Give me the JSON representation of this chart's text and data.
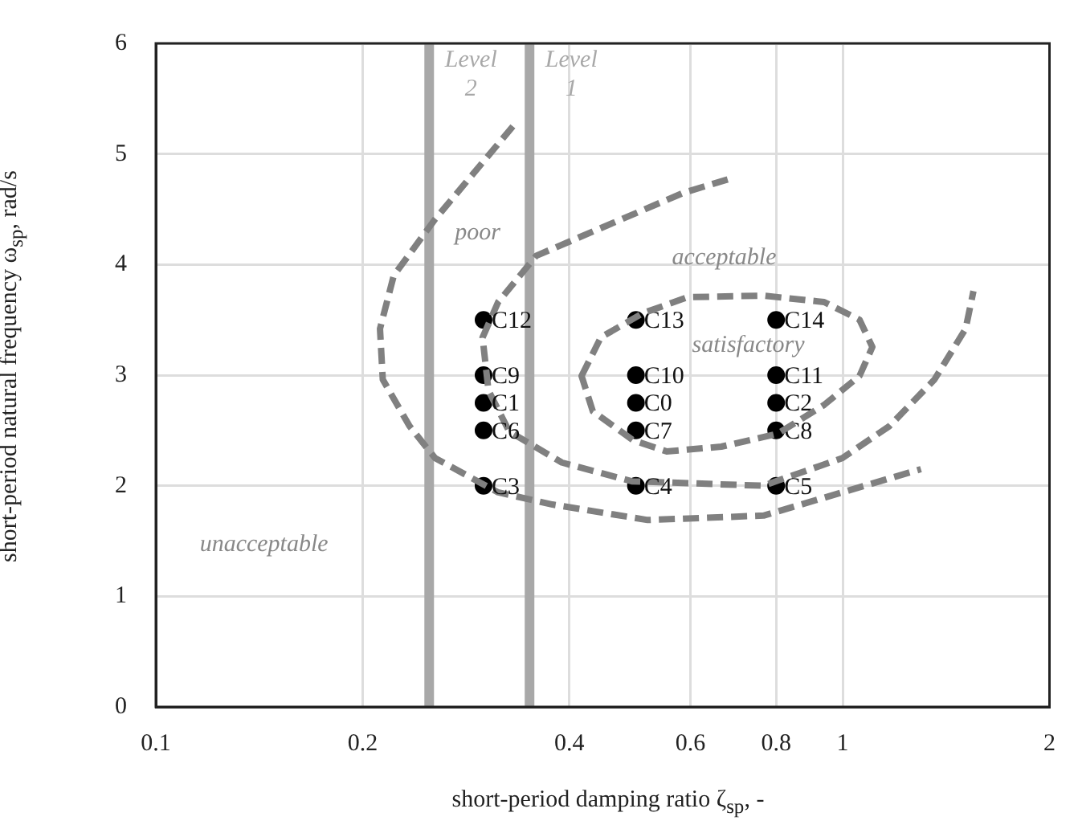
{
  "chart_data": {
    "type": "scatter",
    "xlabel": "short-period damping ratio ζ$_{sp}$, -",
    "ylabel": "short-period natural frequency ω$_{sp}$, rad/s",
    "log": "x",
    "xlim": [
      0.1,
      2
    ],
    "ylim": [
      0,
      6
    ],
    "xticks": [
      0.1,
      0.2,
      0.4,
      0.6,
      0.8,
      1,
      2
    ],
    "yticks": [
      0,
      1,
      2,
      3,
      4,
      5,
      6
    ],
    "grid": true,
    "legend": false,
    "marker": "circle",
    "ref_lines": [
      {
        "axis": "x",
        "value": 0.25,
        "label": "Level 2",
        "color": "#a8a8a8"
      },
      {
        "axis": "x",
        "value": 0.35,
        "label": "Level 1",
        "color": "#a8a8a8"
      }
    ],
    "annotations": [
      "poor",
      "acceptable",
      "satisfactory",
      "unacceptable"
    ],
    "series": [
      {
        "type": "line",
        "color": "#808080",
        "line_style": "dashed",
        "marker": "none",
        "x": [
          0.331,
          0.255,
          0.222,
          0.212,
          0.214,
          0.234,
          0.255,
          0.315,
          0.378,
          0.52,
          0.767,
          1.3
        ],
        "values": [
          5.25,
          4.41,
          3.9,
          3.42,
          2.96,
          2.54,
          2.25,
          1.94,
          1.83,
          1.69,
          1.73,
          2.15
        ]
      },
      {
        "type": "line",
        "color": "#808080",
        "line_style": "dashed",
        "marker": "none",
        "x": [
          0.68,
          0.587,
          0.358,
          0.315,
          0.299,
          0.305,
          0.327,
          0.39,
          0.493,
          0.766,
          0.999,
          1.17,
          1.36,
          1.51,
          1.55
        ],
        "values": [
          4.77,
          4.65,
          4.08,
          3.66,
          3.34,
          2.86,
          2.49,
          2.21,
          2.04,
          2.0,
          2.25,
          2.54,
          2.96,
          3.42,
          3.76
        ]
      },
      {
        "type": "scatter",
        "name": "C0",
        "color": "#000000",
        "x": [
          0.5
        ],
        "values": [
          2.75
        ]
      },
      {
        "type": "scatter",
        "name": "C1",
        "color": "#000000",
        "x": [
          0.3
        ],
        "values": [
          2.75
        ]
      },
      {
        "type": "scatter",
        "name": "C2",
        "color": "#000000",
        "x": [
          0.8
        ],
        "values": [
          2.75
        ]
      },
      {
        "type": "scatter",
        "name": "C3",
        "color": "#000000",
        "x": [
          0.3
        ],
        "values": [
          2
        ]
      },
      {
        "type": "scatter",
        "name": "C4",
        "color": "#000000",
        "x": [
          0.5
        ],
        "values": [
          2
        ]
      },
      {
        "type": "scatter",
        "name": "C5",
        "color": "#000000",
        "x": [
          0.8
        ],
        "values": [
          2
        ]
      },
      {
        "type": "scatter",
        "name": "C6",
        "color": "#000000",
        "x": [
          0.3
        ],
        "values": [
          2.5
        ]
      },
      {
        "type": "scatter",
        "name": "C7",
        "color": "#000000",
        "x": [
          0.5
        ],
        "values": [
          2.5
        ]
      },
      {
        "type": "scatter",
        "name": "C8",
        "color": "#000000",
        "x": [
          0.8
        ],
        "values": [
          2.5
        ]
      },
      {
        "type": "scatter",
        "name": "C9",
        "color": "#000000",
        "x": [
          0.3
        ],
        "values": [
          3
        ]
      },
      {
        "type": "scatter",
        "name": "C10",
        "color": "#000000",
        "x": [
          0.5
        ],
        "values": [
          3
        ]
      },
      {
        "type": "scatter",
        "name": "C11",
        "color": "#000000",
        "x": [
          0.8
        ],
        "values": [
          3
        ]
      },
      {
        "type": "scatter",
        "name": "C12",
        "color": "#000000",
        "x": [
          0.3
        ],
        "values": [
          3.5
        ]
      },
      {
        "type": "scatter",
        "name": "C13",
        "color": "#000000",
        "x": [
          0.5
        ],
        "values": [
          3.5
        ]
      },
      {
        "type": "scatter",
        "name": "C14",
        "color": "#000000",
        "x": [
          0.8
        ],
        "values": [
          3.5
        ]
      }
    ]
  }
}
